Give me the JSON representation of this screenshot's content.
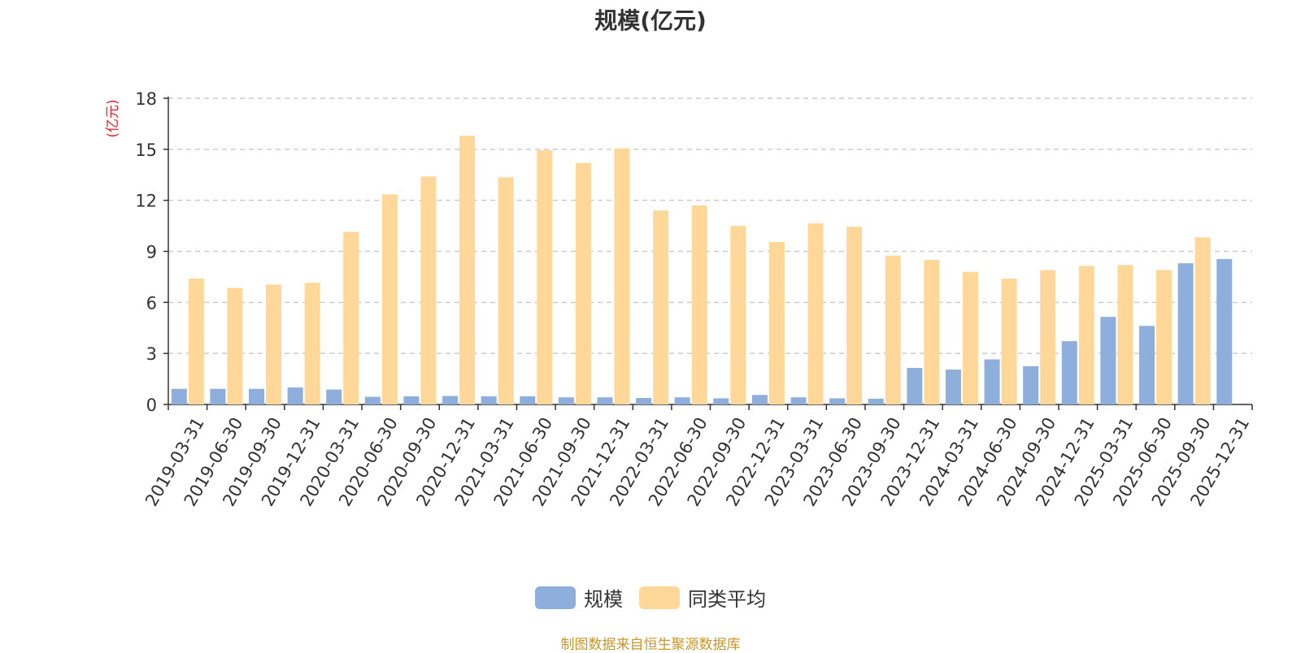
{
  "chart_data": {
    "type": "bar",
    "title": "规模(亿元)",
    "ylabel": "(亿元)",
    "xlabel": "",
    "ylim": [
      0,
      18
    ],
    "yticks": [
      0,
      3,
      6,
      9,
      12,
      15,
      18
    ],
    "grid": true,
    "legend_position": "bottom",
    "categories": [
      "2019-03-31",
      "2019-06-30",
      "2019-09-30",
      "2019-12-31",
      "2020-03-31",
      "2020-06-30",
      "2020-09-30",
      "2020-12-31",
      "2021-03-31",
      "2021-06-30",
      "2021-09-30",
      "2021-12-31",
      "2022-03-31",
      "2022-06-30",
      "2022-09-30",
      "2022-12-31",
      "2023-03-31",
      "2023-06-30",
      "2023-09-30",
      "2023-12-31",
      "2024-03-31",
      "2024-06-30",
      "2024-09-30",
      "2024-12-31",
      "2025-03-31",
      "2025-06-30",
      "2025-09-30",
      "2025-12-31"
    ],
    "series": [
      {
        "name": "规模",
        "color": "#8eaedb",
        "values": [
          0.92,
          0.92,
          0.92,
          1.0,
          0.88,
          0.45,
          0.48,
          0.5,
          0.48,
          0.48,
          0.42,
          0.42,
          0.38,
          0.42,
          0.36,
          0.56,
          0.42,
          0.36,
          0.34,
          2.15,
          2.05,
          2.65,
          2.25,
          3.72,
          5.15,
          4.62,
          8.3,
          8.55
        ]
      },
      {
        "name": "同类平均",
        "color": "#ffd899",
        "values": [
          7.4,
          6.85,
          7.05,
          7.15,
          10.15,
          12.35,
          13.4,
          15.8,
          13.35,
          14.95,
          14.2,
          15.05,
          11.4,
          11.7,
          10.5,
          9.55,
          10.65,
          10.45,
          8.75,
          8.5,
          7.8,
          7.4,
          7.9,
          8.15,
          8.2,
          7.9,
          9.82,
          null
        ]
      }
    ]
  },
  "footer": {
    "source": "制图数据来自恒生聚源数据库"
  }
}
